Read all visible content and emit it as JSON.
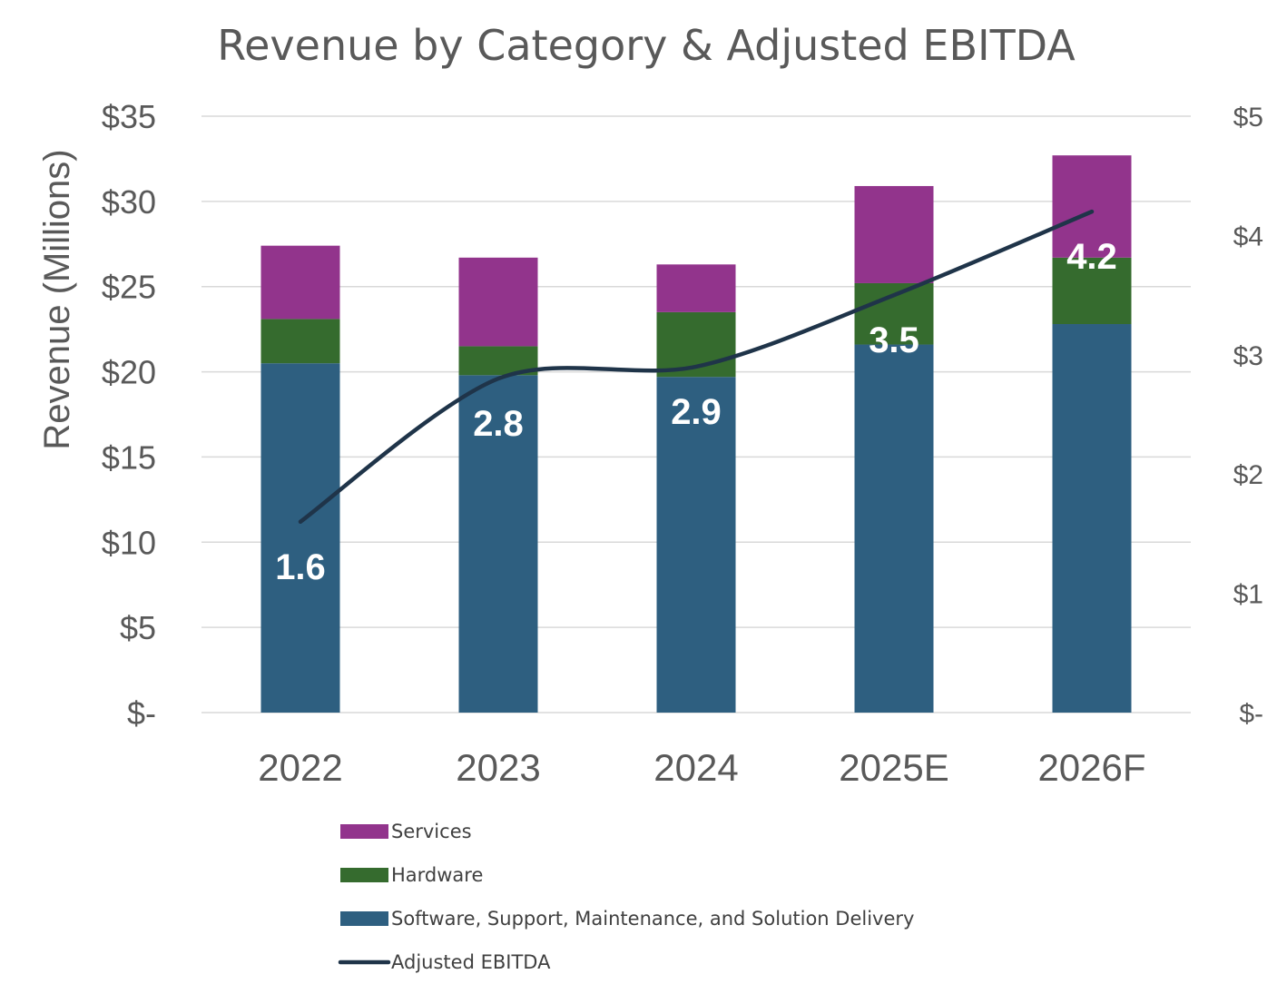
{
  "chart_data": {
    "type": "bar",
    "stacked": true,
    "title": "Revenue by Category & Adjusted EBITDA",
    "ylabel": "Revenue (Millions)",
    "categories": [
      "2022",
      "2023",
      "2024",
      "2025E",
      "2026F"
    ],
    "ylim": [
      0,
      35
    ],
    "yticks": [
      {
        "value": 0,
        "label": "$-"
      },
      {
        "value": 5,
        "label": "$5"
      },
      {
        "value": 10,
        "label": "$10"
      },
      {
        "value": 15,
        "label": "$15"
      },
      {
        "value": 20,
        "label": "$20"
      },
      {
        "value": 25,
        "label": "$25"
      },
      {
        "value": 30,
        "label": "$30"
      },
      {
        "value": 35,
        "label": "$35"
      }
    ],
    "y2lim": [
      0,
      5
    ],
    "y2ticks": [
      {
        "value": 0,
        "label": "$-"
      },
      {
        "value": 1,
        "label": "$1"
      },
      {
        "value": 2,
        "label": "$2"
      },
      {
        "value": 3,
        "label": "$3"
      },
      {
        "value": 4,
        "label": "$4"
      },
      {
        "value": 5,
        "label": "$5"
      }
    ],
    "grid": true,
    "legend_position": "bottom",
    "series": [
      {
        "name": "Software, Support, Maintenance, and Solution Delivery",
        "color": "#2e5f80",
        "values": [
          20.5,
          19.8,
          19.7,
          21.6,
          22.8
        ]
      },
      {
        "name": "Hardware",
        "color": "#356b2e",
        "values": [
          2.6,
          1.7,
          3.8,
          3.6,
          3.9
        ]
      },
      {
        "name": "Services",
        "color": "#92348c",
        "values": [
          4.3,
          5.2,
          2.8,
          5.7,
          6.0
        ]
      }
    ],
    "line_series": {
      "name": "Adjusted EBITDA",
      "color": "#1f3449",
      "axis": "secondary",
      "values": [
        1.6,
        2.8,
        2.9,
        3.5,
        4.2
      ],
      "labels": [
        "1.6",
        "2.8",
        "2.9",
        "3.5",
        "4.2"
      ]
    },
    "legend_order": [
      "Services",
      "Hardware",
      "Software, Support, Maintenance, and Solution Delivery",
      "Adjusted EBITDA"
    ]
  }
}
